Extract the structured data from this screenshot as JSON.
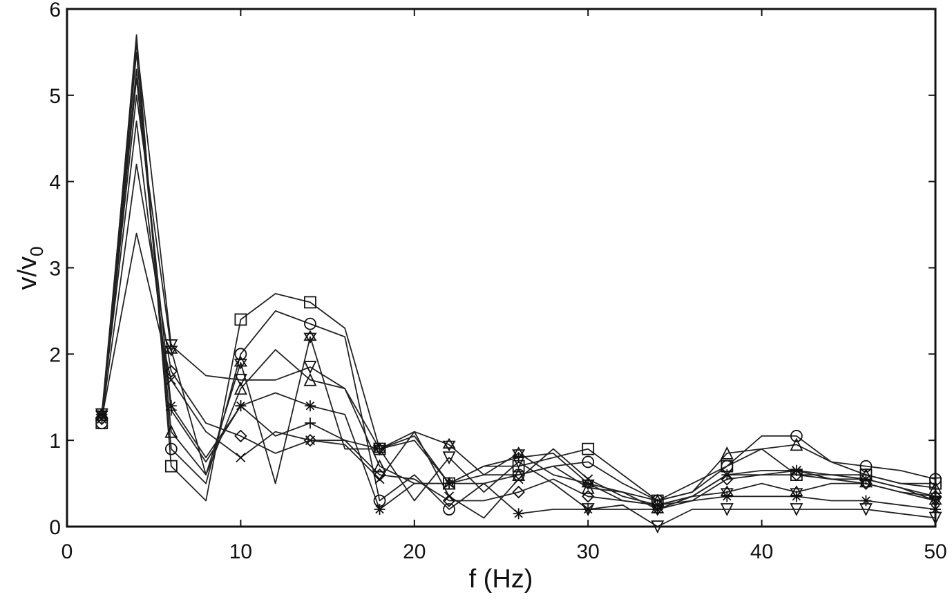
{
  "chart_data": {
    "type": "line",
    "xlabel": "f (Hz)",
    "ylabel_main": "v/v",
    "ylabel_sub": "0",
    "xlim": [
      0,
      50
    ],
    "ylim": [
      0,
      6
    ],
    "x_ticks": [
      0,
      10,
      20,
      30,
      40,
      50
    ],
    "y_ticks": [
      0,
      1,
      2,
      3,
      4,
      5,
      6
    ],
    "x_tick_labels": [
      "0",
      "10",
      "20",
      "30",
      "40",
      "50"
    ],
    "y_tick_labels": [
      "0",
      "1",
      "2",
      "3",
      "4",
      "5",
      "6"
    ],
    "grid": false,
    "legend": "none",
    "x": [
      2,
      4,
      6,
      8,
      10,
      12,
      14,
      16,
      18,
      20,
      22,
      24,
      26,
      28,
      30,
      32,
      34,
      36,
      38,
      40,
      42,
      44,
      46,
      48,
      50
    ],
    "series": [
      {
        "marker": "square",
        "marker_x": [
          2,
          6,
          10,
          14,
          18,
          22,
          26,
          30,
          34,
          38,
          42,
          46,
          50
        ],
        "values": [
          1.2,
          5.7,
          0.7,
          0.3,
          2.4,
          2.7,
          2.6,
          2.3,
          0.9,
          1.0,
          0.5,
          0.7,
          0.7,
          0.8,
          0.9,
          0.6,
          0.3,
          0.4,
          0.7,
          0.9,
          0.6,
          0.6,
          0.6,
          0.5,
          0.5
        ]
      },
      {
        "marker": "circle",
        "marker_x": [
          2,
          6,
          10,
          14,
          18,
          22,
          26,
          30,
          34,
          38,
          42,
          46,
          50
        ],
        "values": [
          1.2,
          5.5,
          0.9,
          0.5,
          2.0,
          2.5,
          2.35,
          2.2,
          0.3,
          0.6,
          0.2,
          0.5,
          0.6,
          0.7,
          0.75,
          0.5,
          0.3,
          0.5,
          0.7,
          1.05,
          1.05,
          0.75,
          0.7,
          0.65,
          0.55
        ]
      },
      {
        "marker": "triangle-down",
        "marker_x": [
          2,
          6,
          10,
          14,
          18,
          22,
          26,
          30,
          34,
          38,
          42,
          46,
          50
        ],
        "values": [
          1.3,
          5.6,
          2.1,
          1.75,
          1.7,
          1.7,
          1.85,
          1.6,
          0.9,
          0.3,
          0.8,
          0.4,
          0.75,
          0.5,
          0.2,
          0.25,
          0.0,
          0.2,
          0.2,
          0.2,
          0.2,
          0.2,
          0.2,
          0.15,
          0.1
        ]
      },
      {
        "marker": "triangle-up",
        "marker_x": [
          2,
          6,
          10,
          14,
          18,
          22,
          26,
          30,
          34,
          38,
          42,
          46,
          50
        ],
        "values": [
          1.3,
          5.3,
          1.1,
          0.6,
          1.6,
          2.05,
          1.7,
          1.6,
          0.7,
          0.5,
          0.5,
          0.6,
          0.6,
          0.7,
          0.45,
          0.4,
          0.3,
          0.4,
          0.85,
          0.9,
          0.95,
          0.75,
          0.6,
          0.5,
          0.45
        ]
      },
      {
        "marker": "asterisk",
        "marker_x": [
          2,
          6,
          10,
          14,
          18,
          22,
          26,
          30,
          34,
          38,
          42,
          46,
          50
        ],
        "values": [
          1.3,
          5.2,
          1.4,
          0.8,
          1.4,
          1.55,
          1.4,
          1.3,
          0.2,
          0.5,
          0.5,
          0.5,
          0.15,
          0.2,
          0.2,
          0.2,
          0.2,
          0.3,
          0.35,
          0.35,
          0.35,
          0.3,
          0.3,
          0.25,
          0.2
        ]
      },
      {
        "marker": "star",
        "marker_x": [
          2,
          6,
          10,
          14,
          18,
          22,
          26,
          30,
          34,
          38,
          42,
          46,
          50
        ],
        "values": [
          1.3,
          5.0,
          2.05,
          0.6,
          1.9,
          0.5,
          2.2,
          0.9,
          0.9,
          1.1,
          0.95,
          0.6,
          0.85,
          0.6,
          0.5,
          0.4,
          0.2,
          0.35,
          0.4,
          0.5,
          0.4,
          0.5,
          0.5,
          0.4,
          0.3
        ]
      },
      {
        "marker": "plus",
        "marker_x": [
          2,
          6,
          10,
          14,
          18,
          22,
          26,
          30,
          34,
          38,
          42,
          46,
          50
        ],
        "values": [
          1.3,
          4.7,
          1.35,
          0.75,
          1.4,
          1.05,
          1.2,
          1.0,
          0.9,
          1.05,
          0.5,
          0.7,
          0.8,
          0.85,
          0.5,
          0.3,
          0.25,
          0.35,
          0.6,
          0.65,
          0.65,
          0.55,
          0.55,
          0.45,
          0.35
        ]
      },
      {
        "marker": "diamond",
        "marker_x": [
          2,
          6,
          10,
          14,
          18,
          22,
          26,
          30,
          34,
          38,
          42,
          46,
          50
        ],
        "values": [
          1.25,
          4.2,
          1.8,
          1.2,
          1.05,
          0.85,
          1.0,
          1.0,
          0.6,
          0.55,
          0.3,
          0.3,
          0.4,
          0.55,
          0.35,
          0.3,
          0.25,
          0.3,
          0.55,
          0.6,
          0.6,
          0.55,
          0.5,
          0.4,
          0.35
        ]
      },
      {
        "marker": "x",
        "marker_x": [
          2,
          6,
          10,
          14,
          18,
          22,
          26,
          30,
          34,
          38,
          42,
          46,
          50
        ],
        "values": [
          1.25,
          3.4,
          1.7,
          1.1,
          0.8,
          1.1,
          1.0,
          0.95,
          0.55,
          1.1,
          0.35,
          0.1,
          0.55,
          0.9,
          0.55,
          0.35,
          0.25,
          0.35,
          0.6,
          0.6,
          0.65,
          0.6,
          0.55,
          0.45,
          0.3
        ]
      }
    ]
  }
}
